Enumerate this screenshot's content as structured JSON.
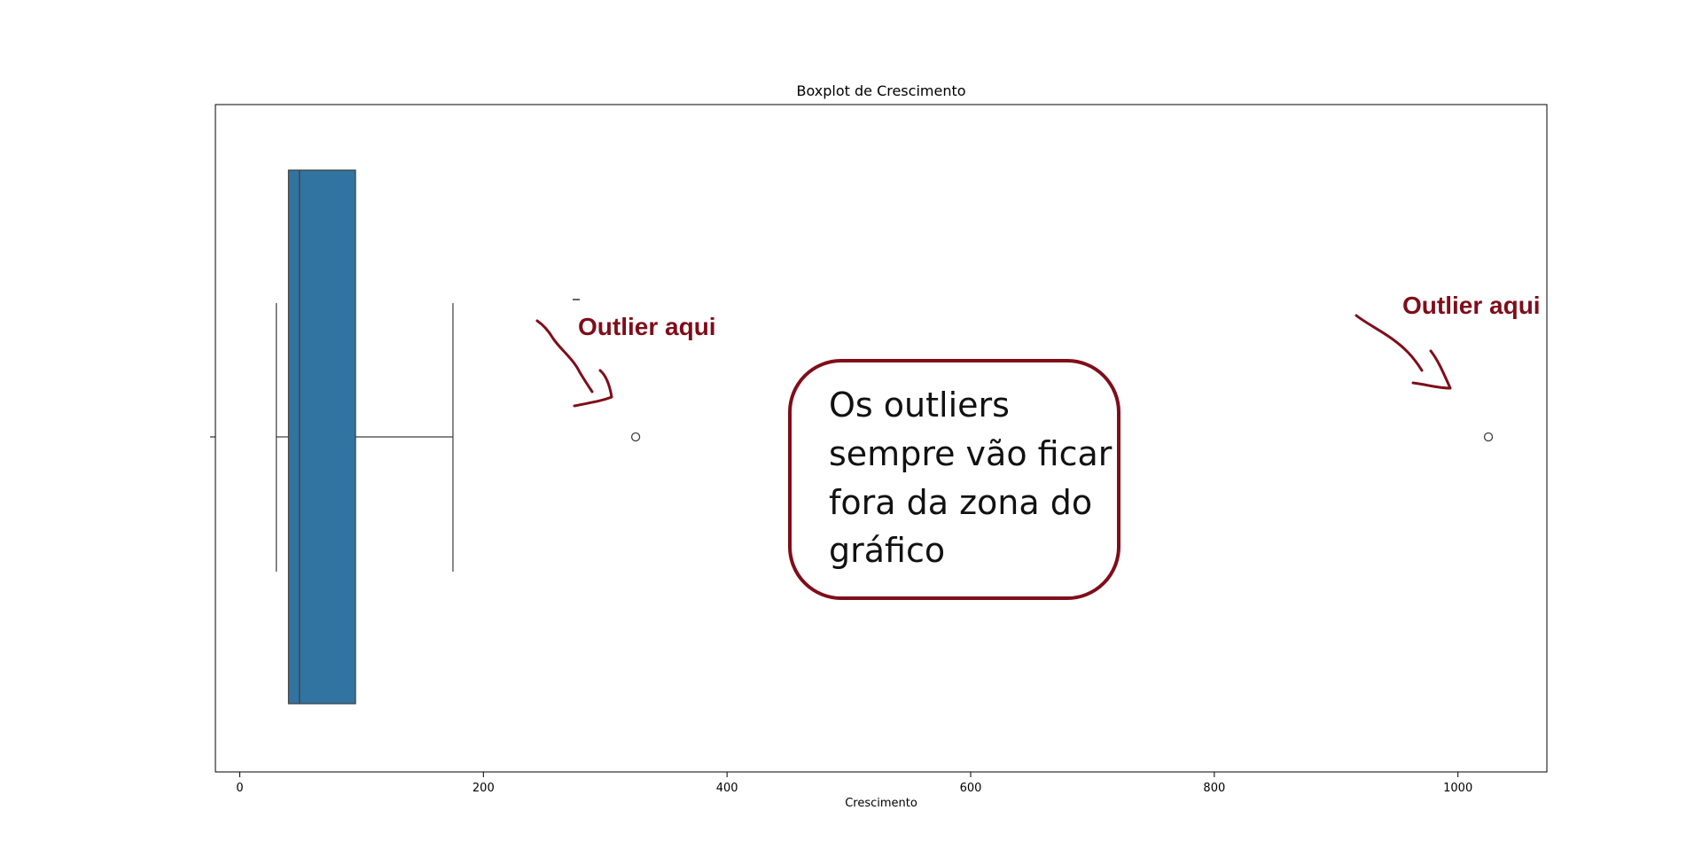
{
  "chart_data": {
    "type": "boxplot",
    "orientation": "horizontal",
    "title": "Boxplot de Crescimento",
    "xlabel": "Crescimento",
    "ylabel": "",
    "xlim": [
      -20,
      1073
    ],
    "xticks": [
      0,
      200,
      400,
      600,
      800,
      1000
    ],
    "xtick_labels": [
      "0",
      "200",
      "400",
      "600",
      "800",
      "1000"
    ],
    "box": {
      "whisker_low": 30,
      "q1": 40,
      "median": 49,
      "q3": 95,
      "whisker_high": 175,
      "outliers": [
        325,
        1025
      ],
      "color": "#3274a1"
    },
    "grid": false
  },
  "annotations": {
    "outlier_label_1": "Outlier aqui",
    "outlier_label_2": "Outlier aqui",
    "note_lines": [
      "Os outliers",
      "sempre vão ficar",
      "fora da zona do",
      "gráfico"
    ],
    "annotation_color": "#800d1a"
  }
}
